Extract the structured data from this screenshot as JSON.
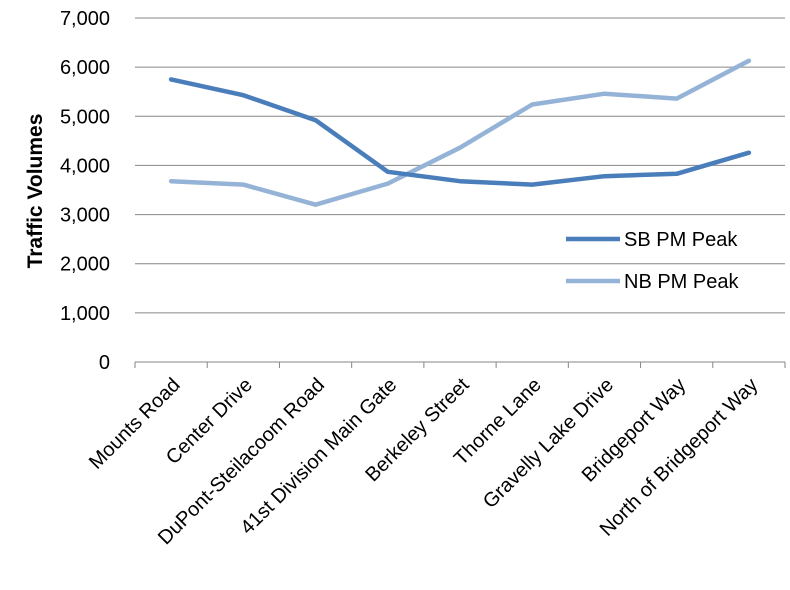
{
  "chart_data": {
    "type": "line",
    "title": "",
    "xlabel": "",
    "ylabel": "Traffic Volumes",
    "ylim": [
      0,
      7000
    ],
    "y_ticks": [
      0,
      1000,
      2000,
      3000,
      4000,
      5000,
      6000,
      7000
    ],
    "y_tick_labels": [
      "0",
      "1,000",
      "2,000",
      "3,000",
      "4,000",
      "5,000",
      "6,000",
      "7,000"
    ],
    "grid": "horizontal",
    "legend_position": "right-center",
    "categories": [
      "Mounts Road",
      "Center Drive",
      "DuPont-Steilacoom Road",
      "41st Division Main Gate",
      "Berkeley Street",
      "Thorne Lane",
      "Gravelly Lake Drive",
      "Bridgeport Way",
      "North of Bridgeport Way"
    ],
    "series": [
      {
        "name": "SB PM Peak",
        "color": "#4a7ebb",
        "values": [
          5750,
          5430,
          4920,
          3870,
          3680,
          3610,
          3780,
          3830,
          4260
        ]
      },
      {
        "name": "NB PM Peak",
        "color": "#95b3d7",
        "values": [
          3680,
          3610,
          3200,
          3630,
          4360,
          5240,
          5460,
          5360,
          6130
        ]
      }
    ]
  }
}
